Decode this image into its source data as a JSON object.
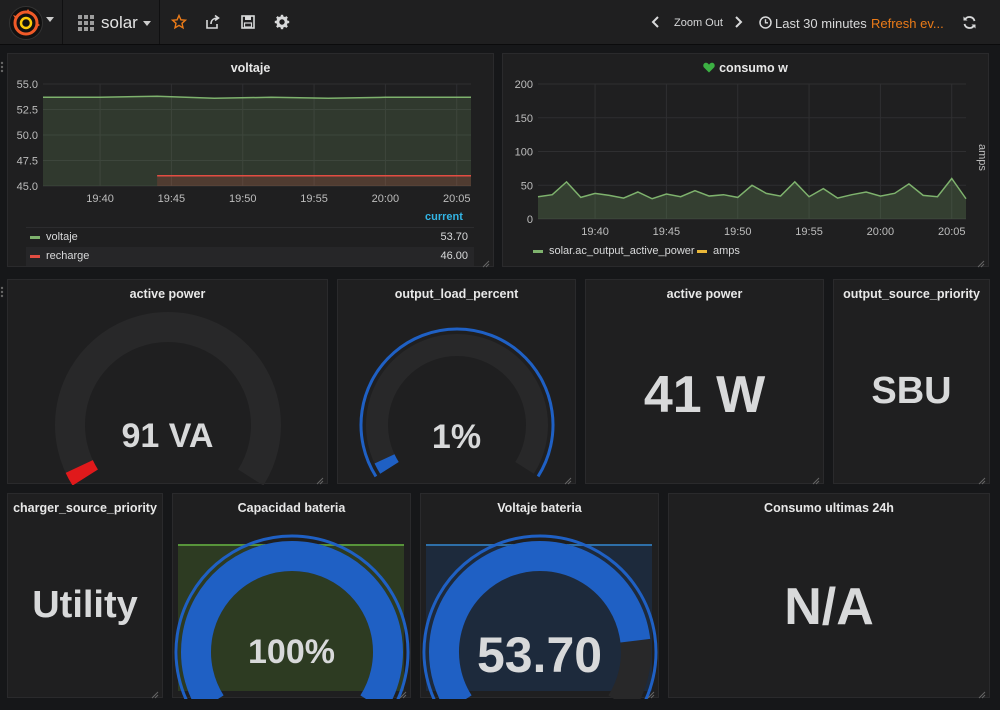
{
  "nav": {
    "dashboard_title": "solar",
    "zoom_out_label": "Zoom Out",
    "time_range_label": "Last 30 minutes",
    "refresh_label": "Refresh ev..."
  },
  "panels": {
    "voltaje": {
      "title": "voltaje",
      "legend_header": "current",
      "legend": [
        {
          "name": "voltaje",
          "value": "53.70",
          "color": "#7eb26d"
        },
        {
          "name": "recharge",
          "value": "46.00",
          "color": "#e24d42"
        }
      ]
    },
    "consumo": {
      "title": "consumo w",
      "right_axis_label": "amps",
      "legend": [
        {
          "name": "solar.ac_output_active_power",
          "color": "#7eb26d"
        },
        {
          "name": "amps",
          "color": "#eab839"
        }
      ]
    },
    "active_power_va": {
      "title": "active power",
      "value": "91 VA",
      "fraction": 0.03
    },
    "output_load_percent": {
      "title": "output_load_percent",
      "value": "1%",
      "fraction": 0.03
    },
    "active_power_w": {
      "title": "active power",
      "value": "41 W"
    },
    "output_source_priority": {
      "title": "output_source_priority",
      "value": "SBU"
    },
    "charger_source_priority": {
      "title": "charger_source_priority",
      "value": "Utility"
    },
    "capacidad_bateria": {
      "title": "Capacidad bateria",
      "value": "100%",
      "fraction": 1.0
    },
    "voltaje_bateria": {
      "title": "Voltaje bateria",
      "value": "53.70",
      "fraction": 0.84
    },
    "consumo_24h": {
      "title": "Consumo ultimas 24h",
      "value": "N/A"
    }
  },
  "chart_data": [
    {
      "type": "line",
      "title": "voltaje",
      "x_ticks": [
        "19:40",
        "19:45",
        "19:50",
        "19:55",
        "20:00",
        "20:05"
      ],
      "y_ticks": [
        "45.0",
        "47.5",
        "50.0",
        "52.5",
        "55.0"
      ],
      "ylim": [
        45,
        55
      ],
      "xlim": [
        "19:36",
        "20:06"
      ],
      "grid": true,
      "legend_placement": "bottom",
      "series": [
        {
          "name": "voltaje",
          "color": "#7eb26d",
          "x": [
            "19:36",
            "19:40",
            "19:44",
            "19:48",
            "19:52",
            "19:56",
            "20:00",
            "20:04",
            "20:06"
          ],
          "y": [
            53.7,
            53.7,
            53.8,
            53.6,
            53.7,
            53.6,
            53.7,
            53.7,
            53.7
          ]
        },
        {
          "name": "recharge",
          "color": "#e24d42",
          "x": [
            "19:44",
            "20:06"
          ],
          "y": [
            46.0,
            46.0
          ]
        }
      ]
    },
    {
      "type": "line",
      "title": "consumo w",
      "x_ticks": [
        "19:40",
        "19:45",
        "19:50",
        "19:55",
        "20:00",
        "20:05"
      ],
      "y_ticks": [
        "0",
        "50",
        "100",
        "150",
        "200"
      ],
      "ylim": [
        0,
        200
      ],
      "xlim": [
        "19:36",
        "20:06"
      ],
      "right_ylabel": "amps",
      "grid": true,
      "legend_placement": "bottom",
      "series": [
        {
          "name": "solar.ac_output_active_power",
          "color": "#7eb26d",
          "x": [
            "19:36",
            "19:37",
            "19:38",
            "19:39",
            "19:40",
            "19:41",
            "19:42",
            "19:43",
            "19:44",
            "19:45",
            "19:46",
            "19:47",
            "19:48",
            "19:49",
            "19:50",
            "19:51",
            "19:52",
            "19:53",
            "19:54",
            "19:55",
            "19:56",
            "19:57",
            "19:58",
            "19:59",
            "20:00",
            "20:01",
            "20:02",
            "20:03",
            "20:04",
            "20:05",
            "20:06"
          ],
          "y": [
            33,
            36,
            55,
            32,
            38,
            35,
            31,
            40,
            30,
            37,
            33,
            42,
            34,
            36,
            32,
            50,
            38,
            34,
            55,
            33,
            45,
            31,
            36,
            40,
            34,
            38,
            52,
            35,
            33,
            60,
            30
          ]
        },
        {
          "name": "amps",
          "color": "#eab839",
          "x": [],
          "y": []
        }
      ]
    }
  ]
}
